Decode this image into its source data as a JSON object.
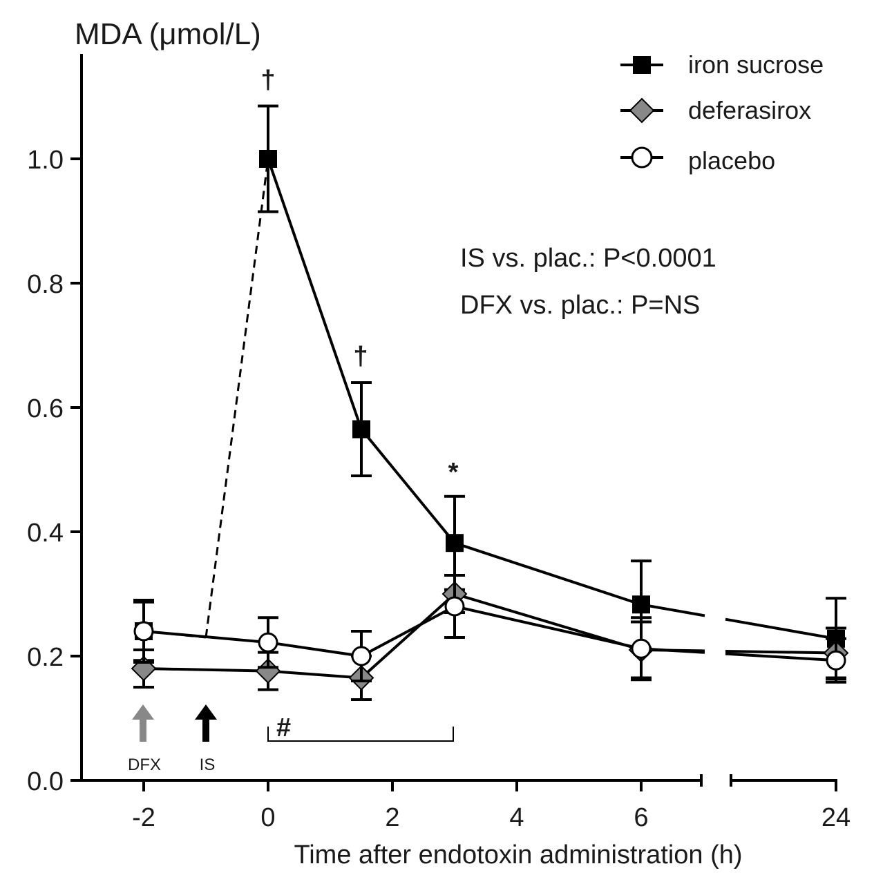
{
  "chart_data": {
    "type": "line",
    "ylabel": "MDA (μmol/L)",
    "xlabel": "Time after endotoxin administration (h)",
    "ylim": [
      0,
      1.12
    ],
    "y_ticks": [
      "0.0",
      "0.2",
      "0.4",
      "0.6",
      "0.8",
      "1.0"
    ],
    "y_tick_values": [
      0,
      0.2,
      0.4,
      0.6,
      0.8,
      1.0
    ],
    "x_ticks": [
      "-2",
      "0",
      "2",
      "4",
      "6",
      "24"
    ],
    "x_tick_values": [
      -2,
      0,
      2,
      4,
      6,
      24
    ],
    "x_axis_break": "between 6 and 24",
    "series": [
      {
        "name": "iron sucrose",
        "marker": "square",
        "color": "#000000",
        "fill": "#000000",
        "x": [
          -2,
          0,
          1.5,
          3,
          6,
          24
        ],
        "y": [
          0.24,
          1.0,
          0.565,
          0.382,
          0.283,
          0.228
        ],
        "err": [
          0.047,
          0.085,
          0.075,
          0.075,
          0.07,
          0.065
        ],
        "dashed_segment": "baseline to 0"
      },
      {
        "name": "deferasirox",
        "marker": "diamond",
        "color": "#000000",
        "fill": "#888888",
        "x": [
          -2,
          0,
          1.5,
          3,
          6,
          24
        ],
        "y": [
          0.18,
          0.176,
          0.165,
          0.3,
          0.21,
          0.205
        ],
        "err": [
          0.03,
          0.03,
          0.035,
          0.03,
          0.045,
          0.04
        ]
      },
      {
        "name": "placebo",
        "marker": "circle",
        "color": "#000000",
        "fill": "#ffffff",
        "x": [
          -2,
          0,
          1.5,
          3,
          6,
          24
        ],
        "y": [
          0.24,
          0.222,
          0.2,
          0.28,
          0.212,
          0.193
        ],
        "err": [
          0.05,
          0.04,
          0.04,
          0.05,
          0.05,
          0.035
        ]
      }
    ],
    "annotations": {
      "dagger_0": "†",
      "dagger_1": "†",
      "star_3": "*",
      "hash": "#",
      "stat_line1": "IS vs. plac.: P<0.0001",
      "stat_line2": "DFX vs. plac.: P=NS",
      "arrow_dfx": "DFX",
      "arrow_is": "IS",
      "arrow_dfx_color": "#888888",
      "arrow_is_color": "#000000"
    }
  }
}
